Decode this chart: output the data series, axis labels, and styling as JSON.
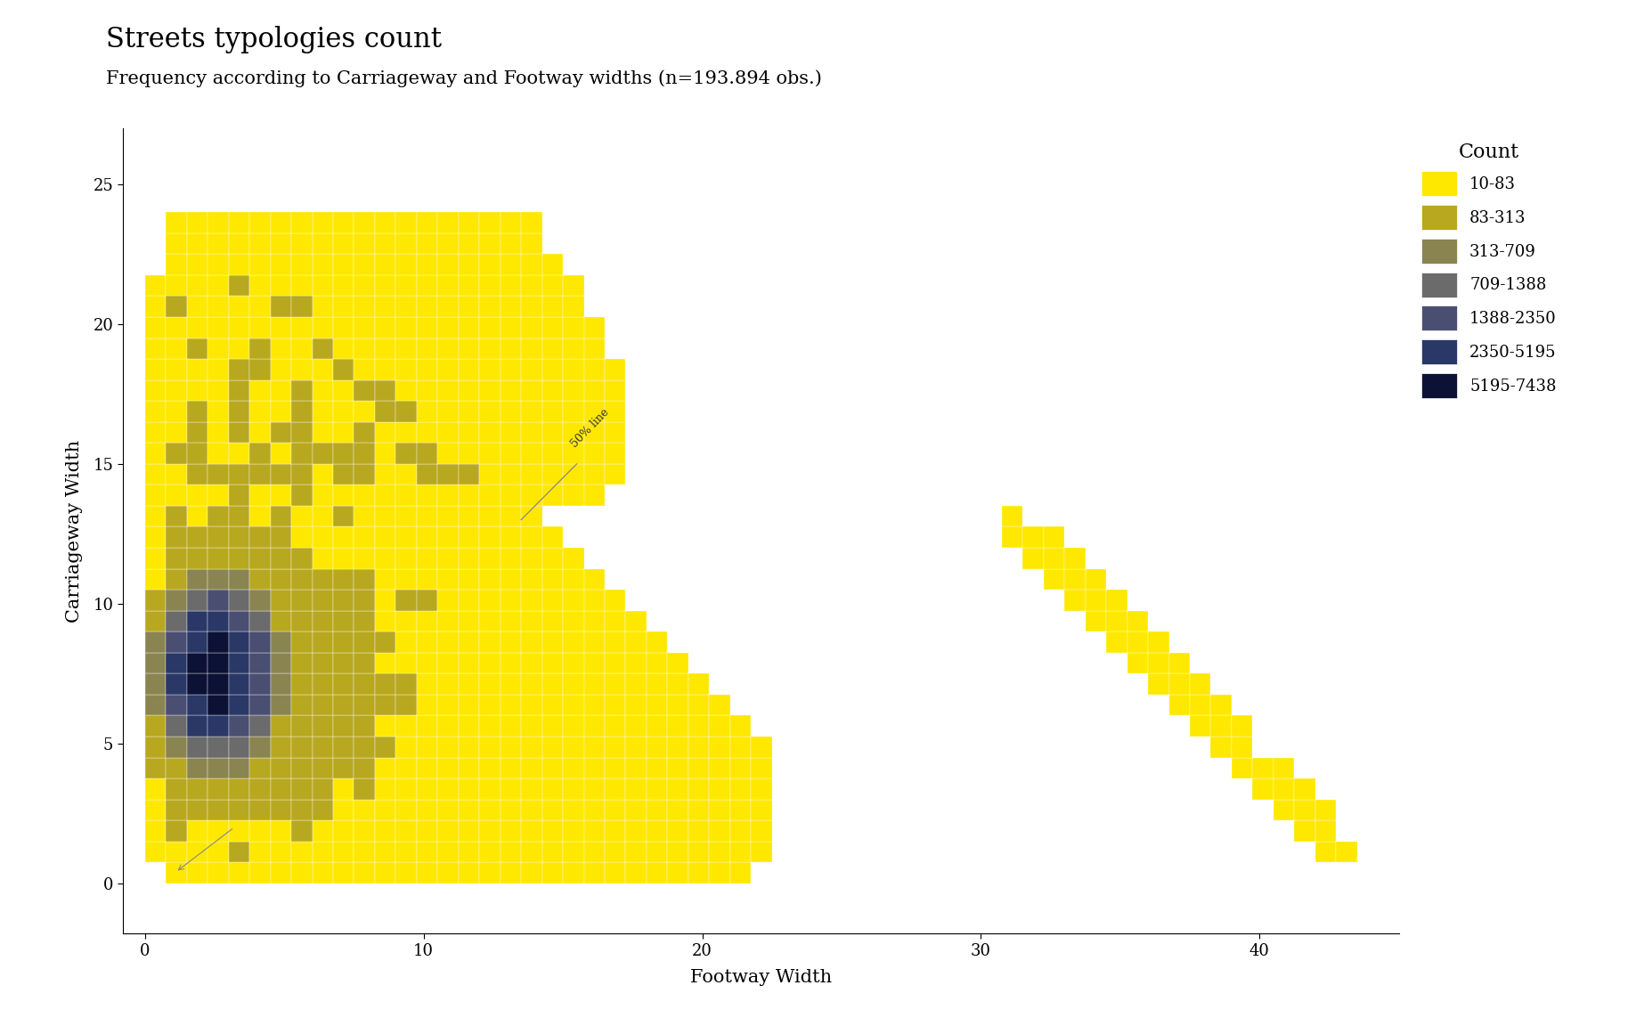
{
  "title": "Streets typologies count",
  "subtitle": "Frequency according to Carriageway and Footway widths (n=193.894 obs.)",
  "xlabel": "Footway Width",
  "ylabel": "Carriageway Width",
  "xlim": [
    -0.8,
    45
  ],
  "ylim": [
    -1.8,
    27
  ],
  "xticks": [
    0,
    10,
    20,
    30,
    40
  ],
  "yticks": [
    0,
    5,
    10,
    15,
    20,
    25
  ],
  "legend_title": "Count",
  "legend_labels": [
    "10-83",
    "83-313",
    "313-709",
    "709-1388",
    "1388-2350",
    "2350-5195",
    "5195-7438"
  ],
  "legend_colors": [
    "#FFE800",
    "#B8A820",
    "#8A8550",
    "#6B6B6B",
    "#4A4F72",
    "#2A3868",
    "#0C1235"
  ],
  "count_bins": [
    10,
    83,
    313,
    709,
    1388,
    2350,
    5195,
    7439
  ],
  "background_color": "#ffffff",
  "title_fontsize": 22,
  "subtitle_fontsize": 15,
  "axis_label_fontsize": 15,
  "tick_fontsize": 13,
  "legend_fontsize": 13,
  "bin_size": 0.75
}
